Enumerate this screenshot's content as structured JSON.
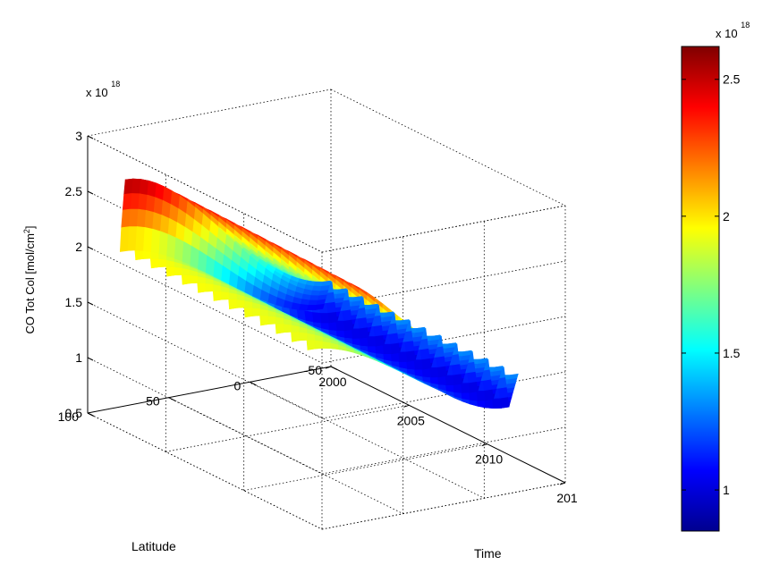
{
  "chart_data": {
    "type": "surface",
    "zlabel_base": "CO Tot Col [mol/cm",
    "zlabel_sup": "2",
    "zlabel_end": "]",
    "xlabel": "Time",
    "ylabel": "Latitude",
    "z_exponent": {
      "base": "x 10",
      "power": "18"
    },
    "time_ticks": [
      "2000",
      "2005",
      "2010",
      "201"
    ],
    "lat_ticks": [
      "-50",
      "0",
      "50",
      "100"
    ],
    "z_ticks": [
      "0.5",
      "1",
      "1.5",
      "2",
      "2.5",
      "3"
    ],
    "xlim": [
      2000,
      2015
    ],
    "ylim": [
      -50,
      100
    ],
    "zlim": [
      0.5,
      3.0
    ],
    "z_scale": 1e+18,
    "grid": true,
    "colormap": "jet",
    "colorbar": {
      "exponent": {
        "base": "x 10",
        "power": "18"
      },
      "ticks": [
        "1",
        "1.5",
        "2",
        "2.5"
      ],
      "range": [
        0.85,
        2.62
      ]
    },
    "surface": {
      "time_range": [
        2000,
        2012.5
      ],
      "lat_range": [
        -45,
        80
      ],
      "cycle_period_years": 1.0,
      "north_peak_value": 2.6,
      "north_trough_value": 1.9,
      "south_peak_value": 1.35,
      "south_trough_value": 0.9
    }
  }
}
